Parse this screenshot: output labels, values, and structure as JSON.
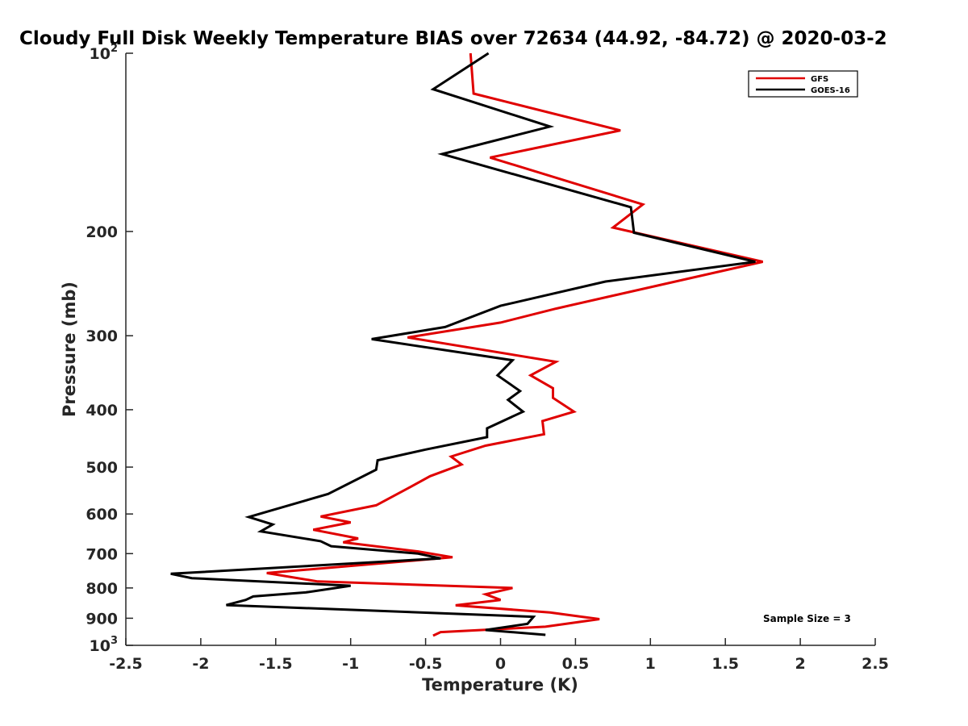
{
  "chart_data": {
    "type": "line",
    "title": "Cloudy Full Disk Weekly Temperature BIAS over 72634 (44.92, -84.72) @ 2020-03-2",
    "xlabel": "Temperature (K)",
    "ylabel": "Pressure (mb)",
    "xlim": [
      -2.5,
      2.5
    ],
    "ylim": [
      100,
      1000
    ],
    "y_scale": "log",
    "y_reversed": true,
    "grid": false,
    "legend_position": "top-right",
    "annotation": "Sample Size = 3",
    "x_ticks": [
      "-2.5",
      "-2",
      "-1.5",
      "-1",
      "-0.5",
      "0",
      "0.5",
      "1",
      "1.5",
      "2",
      "2.5"
    ],
    "y_ticks": [
      {
        "base": "10",
        "exp": "2"
      },
      {
        "base": "200",
        "exp": ""
      },
      {
        "base": "300",
        "exp": ""
      },
      {
        "base": "400",
        "exp": ""
      },
      {
        "base": "500",
        "exp": ""
      },
      {
        "base": "600",
        "exp": ""
      },
      {
        "base": "700",
        "exp": ""
      },
      {
        "base": "800",
        "exp": ""
      },
      {
        "base": "900",
        "exp": ""
      },
      {
        "base": "10",
        "exp": "3"
      }
    ],
    "series": [
      {
        "name": "GFS",
        "color": "#e00000",
        "points": [
          [
            -0.2,
            100
          ],
          [
            -0.18,
            117
          ],
          [
            0.8,
            135
          ],
          [
            -0.07,
            150
          ],
          [
            0.95,
            180
          ],
          [
            0.75,
            197
          ],
          [
            1.75,
            225
          ],
          [
            0.95,
            250
          ],
          [
            0.37,
            270
          ],
          [
            0.0,
            285
          ],
          [
            -0.62,
            302
          ],
          [
            0.37,
            332
          ],
          [
            0.2,
            350
          ],
          [
            0.35,
            368
          ],
          [
            0.35,
            382
          ],
          [
            0.49,
            403
          ],
          [
            0.28,
            418
          ],
          [
            0.29,
            440
          ],
          [
            -0.1,
            460
          ],
          [
            -0.33,
            480
          ],
          [
            -0.26,
            495
          ],
          [
            -0.47,
            518
          ],
          [
            -0.6,
            540
          ],
          [
            -0.83,
            580
          ],
          [
            -1.2,
            606
          ],
          [
            -1.0,
            620
          ],
          [
            -1.25,
            638
          ],
          [
            -0.95,
            660
          ],
          [
            -1.05,
            670
          ],
          [
            -0.55,
            694
          ],
          [
            -0.32,
            710
          ],
          [
            -1.56,
            755
          ],
          [
            -1.22,
            780
          ],
          [
            0.08,
            800
          ],
          [
            -0.1,
            820
          ],
          [
            0.0,
            838
          ],
          [
            -0.3,
            856
          ],
          [
            0.33,
            880
          ],
          [
            0.66,
            903
          ],
          [
            0.3,
            930
          ],
          [
            -0.4,
            950
          ],
          [
            -0.45,
            963
          ]
        ]
      },
      {
        "name": "GOES-16",
        "color": "#000000",
        "points": [
          [
            -0.08,
            100
          ],
          [
            -0.45,
            115
          ],
          [
            0.33,
            133
          ],
          [
            -0.39,
            148
          ],
          [
            0.87,
            182
          ],
          [
            0.89,
            201
          ],
          [
            1.7,
            225
          ],
          [
            0.7,
            243
          ],
          [
            0.0,
            267
          ],
          [
            -0.37,
            290
          ],
          [
            -0.86,
            304
          ],
          [
            0.08,
            330
          ],
          [
            -0.02,
            350
          ],
          [
            0.13,
            372
          ],
          [
            0.05,
            385
          ],
          [
            0.15,
            403
          ],
          [
            -0.09,
            430
          ],
          [
            -0.09,
            445
          ],
          [
            -0.5,
            467
          ],
          [
            -0.82,
            487
          ],
          [
            -0.83,
            505
          ],
          [
            -1.15,
            555
          ],
          [
            -1.68,
            607
          ],
          [
            -1.52,
            625
          ],
          [
            -1.6,
            642
          ],
          [
            -1.2,
            667
          ],
          [
            -1.13,
            680
          ],
          [
            -0.55,
            700
          ],
          [
            -0.4,
            713
          ],
          [
            -2.2,
            757
          ],
          [
            -2.06,
            770
          ],
          [
            -1.0,
            793
          ],
          [
            -1.3,
            814
          ],
          [
            -1.65,
            827
          ],
          [
            -1.7,
            838
          ],
          [
            -1.83,
            855
          ],
          [
            0.22,
            895
          ],
          [
            0.18,
            920
          ],
          [
            -0.1,
            942
          ],
          [
            0.3,
            960
          ]
        ]
      }
    ]
  }
}
